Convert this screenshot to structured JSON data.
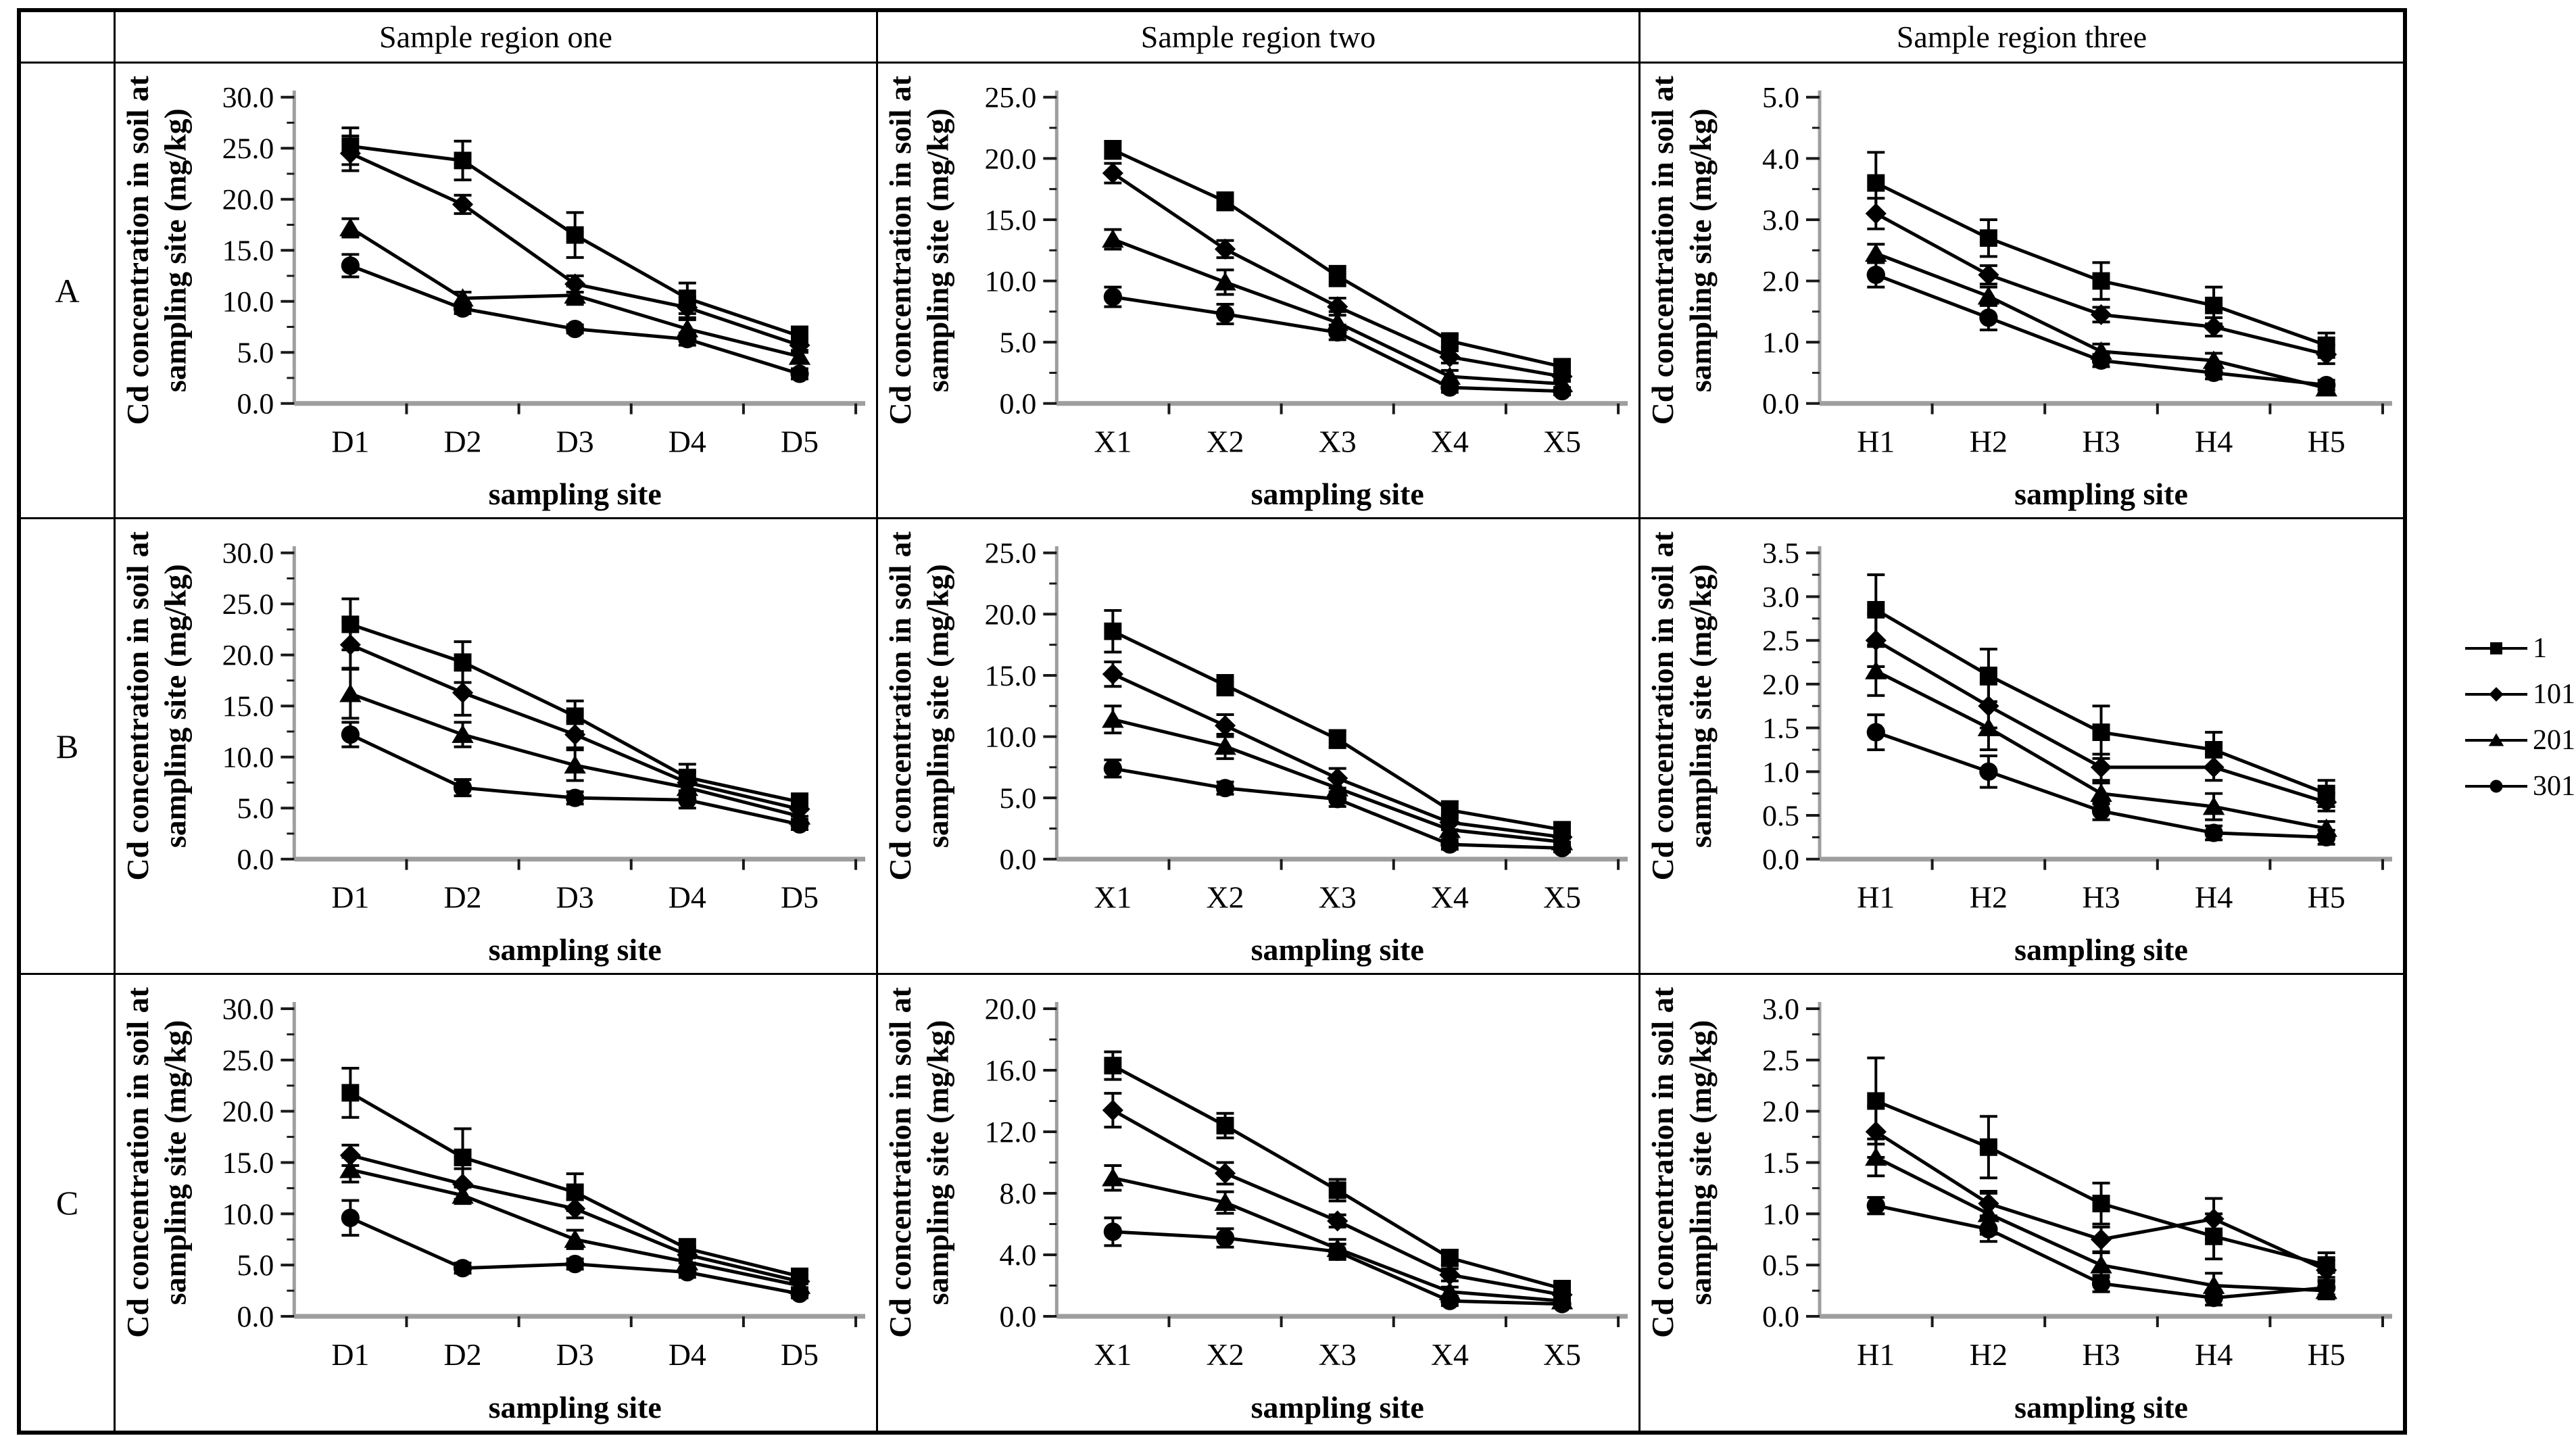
{
  "figure": {
    "corner_label": "",
    "column_headers": [
      "Sample region one",
      "Sample region two",
      "Sample region three"
    ],
    "row_labels": [
      "A",
      "B",
      "C"
    ]
  },
  "legend": {
    "position": "right",
    "items": [
      {
        "label": "1",
        "marker": "square"
      },
      {
        "label": "101",
        "marker": "diamond"
      },
      {
        "label": "201",
        "marker": "triangle"
      },
      {
        "label": "301",
        "marker": "circle"
      }
    ]
  },
  "colors": {
    "series": "#000000",
    "axis_line": "#9e9e9e",
    "tick": "#1a1a1a",
    "border": "#000000",
    "text": "#000000"
  },
  "chart_data": [
    {
      "id": "A-region-one",
      "type": "line",
      "row": "A",
      "region": "Sample region one",
      "categories": [
        "D1",
        "D2",
        "D3",
        "D4",
        "D5"
      ],
      "xlabel": "sampling site",
      "ylabel_lines": [
        "Cd concentration in  soil at",
        "sampling site (mg/kg)"
      ],
      "ylim": [
        0,
        30.0
      ],
      "ystep": 5.0,
      "tick_decimals": 1,
      "series": [
        {
          "name": "1",
          "marker": "square",
          "values": [
            25.2,
            23.8,
            16.5,
            10.3,
            6.6
          ],
          "errors": [
            1.8,
            1.9,
            2.2,
            1.5,
            0.9
          ]
        },
        {
          "name": "101",
          "marker": "diamond",
          "values": [
            24.5,
            19.5,
            11.7,
            9.4,
            5.7
          ],
          "errors": [
            1.7,
            0.9,
            0.8,
            1.0,
            0.7
          ]
        },
        {
          "name": "201",
          "marker": "triangle",
          "values": [
            17.2,
            10.3,
            10.6,
            7.3,
            4.6
          ],
          "errors": [
            0.9,
            0.6,
            0.9,
            0.9,
            0.6
          ]
        },
        {
          "name": "301",
          "marker": "circle",
          "values": [
            13.5,
            9.3,
            7.3,
            6.3,
            2.9
          ],
          "errors": [
            1.1,
            0.5,
            0.4,
            0.6,
            0.5
          ]
        }
      ]
    },
    {
      "id": "A-region-two",
      "type": "line",
      "row": "A",
      "region": "Sample region two",
      "categories": [
        "X1",
        "X2",
        "X3",
        "X4",
        "X5"
      ],
      "xlabel": "sampling site",
      "ylabel_lines": [
        "Cd concentration in  soil at",
        "sampling site (mg/kg)"
      ],
      "ylim": [
        0,
        25.0
      ],
      "ystep": 5.0,
      "tick_decimals": 1,
      "series": [
        {
          "name": "1",
          "marker": "square",
          "values": [
            20.7,
            16.5,
            10.4,
            5.1,
            3.0
          ],
          "errors": [
            0.7,
            0.7,
            0.8,
            0.5,
            0.5
          ]
        },
        {
          "name": "101",
          "marker": "diamond",
          "values": [
            18.8,
            12.6,
            7.9,
            3.8,
            2.2
          ],
          "errors": [
            0.8,
            0.7,
            0.7,
            0.5,
            0.4
          ]
        },
        {
          "name": "201",
          "marker": "triangle",
          "values": [
            13.4,
            9.9,
            6.6,
            2.2,
            1.6
          ],
          "errors": [
            0.8,
            1.0,
            0.9,
            0.5,
            0.3
          ]
        },
        {
          "name": "301",
          "marker": "circle",
          "values": [
            8.7,
            7.3,
            5.8,
            1.3,
            1.0
          ],
          "errors": [
            0.8,
            0.8,
            0.6,
            0.4,
            0.3
          ]
        }
      ]
    },
    {
      "id": "A-region-three",
      "type": "line",
      "row": "A",
      "region": "Sample region three",
      "categories": [
        "H1",
        "H2",
        "H3",
        "H4",
        "H5"
      ],
      "xlabel": "sampling site",
      "ylabel_lines": [
        "Cd concentration in  soil at",
        "sampling site (mg/kg)"
      ],
      "ylim": [
        0,
        5.0
      ],
      "ystep": 1.0,
      "tick_decimals": 1,
      "series": [
        {
          "name": "1",
          "marker": "square",
          "values": [
            3.6,
            2.7,
            2.0,
            1.6,
            0.95
          ],
          "errors": [
            0.5,
            0.3,
            0.3,
            0.3,
            0.2
          ]
        },
        {
          "name": "101",
          "marker": "diamond",
          "values": [
            3.1,
            2.1,
            1.45,
            1.25,
            0.8
          ],
          "errors": [
            0.25,
            0.15,
            0.12,
            0.15,
            0.15
          ]
        },
        {
          "name": "201",
          "marker": "triangle",
          "values": [
            2.45,
            1.75,
            0.85,
            0.7,
            0.25
          ],
          "errors": [
            0.15,
            0.15,
            0.12,
            0.12,
            0.08
          ]
        },
        {
          "name": "301",
          "marker": "circle",
          "values": [
            2.1,
            1.4,
            0.7,
            0.5,
            0.3
          ],
          "errors": [
            0.2,
            0.2,
            0.1,
            0.1,
            0.08
          ]
        }
      ]
    },
    {
      "id": "B-region-one",
      "type": "line",
      "row": "B",
      "region": "Sample region one",
      "categories": [
        "D1",
        "D2",
        "D3",
        "D4",
        "D5"
      ],
      "xlabel": "sampling site",
      "ylabel_lines": [
        "Cd concentration in  soil at",
        "sampling site (mg/kg)"
      ],
      "ylim": [
        0,
        30.0
      ],
      "ystep": 5.0,
      "tick_decimals": 1,
      "series": [
        {
          "name": "1",
          "marker": "square",
          "values": [
            23.0,
            19.3,
            14.0,
            8.0,
            5.6
          ],
          "errors": [
            2.5,
            2.0,
            1.5,
            1.3,
            0.8
          ]
        },
        {
          "name": "101",
          "marker": "diamond",
          "values": [
            21.0,
            16.3,
            12.2,
            7.5,
            4.9
          ],
          "errors": [
            2.3,
            2.2,
            1.3,
            1.0,
            0.7
          ]
        },
        {
          "name": "201",
          "marker": "triangle",
          "values": [
            16.2,
            12.2,
            9.2,
            7.0,
            4.2
          ],
          "errors": [
            2.4,
            1.2,
            1.5,
            0.9,
            0.6
          ]
        },
        {
          "name": "301",
          "marker": "circle",
          "values": [
            12.2,
            7.0,
            6.0,
            5.8,
            3.4
          ],
          "errors": [
            1.2,
            0.8,
            0.6,
            0.8,
            0.5
          ]
        }
      ]
    },
    {
      "id": "B-region-two",
      "type": "line",
      "row": "B",
      "region": "Sample region two",
      "categories": [
        "X1",
        "X2",
        "X3",
        "X4",
        "X5"
      ],
      "xlabel": "sampling site",
      "ylabel_lines": [
        "Cd concentration in  soil at",
        "sampling site (mg/kg)"
      ],
      "ylim": [
        0,
        25.0
      ],
      "ystep": 5.0,
      "tick_decimals": 1,
      "series": [
        {
          "name": "1",
          "marker": "square",
          "values": [
            18.6,
            14.2,
            9.8,
            4.0,
            2.4
          ],
          "errors": [
            1.7,
            0.8,
            0.7,
            0.7,
            0.5
          ]
        },
        {
          "name": "101",
          "marker": "diamond",
          "values": [
            15.1,
            10.9,
            6.6,
            3.0,
            1.8
          ],
          "errors": [
            1.0,
            0.9,
            0.8,
            0.6,
            0.4
          ]
        },
        {
          "name": "201",
          "marker": "triangle",
          "values": [
            11.4,
            9.2,
            5.8,
            2.4,
            1.4
          ],
          "errors": [
            1.1,
            1.0,
            0.7,
            0.5,
            0.3
          ]
        },
        {
          "name": "301",
          "marker": "circle",
          "values": [
            7.4,
            5.8,
            4.9,
            1.2,
            0.9
          ],
          "errors": [
            0.7,
            0.5,
            0.6,
            0.4,
            0.3
          ]
        }
      ]
    },
    {
      "id": "B-region-three",
      "type": "line",
      "row": "B",
      "region": "Sample region three",
      "categories": [
        "H1",
        "H2",
        "H3",
        "H4",
        "H5"
      ],
      "xlabel": "sampling site",
      "ylabel_lines": [
        "Cd concentration in  soil at",
        "sampling site (mg/kg)"
      ],
      "ylim": [
        0,
        3.5
      ],
      "ystep": 0.5,
      "tick_decimals": 1,
      "series": [
        {
          "name": "1",
          "marker": "square",
          "values": [
            2.85,
            2.1,
            1.45,
            1.25,
            0.75
          ],
          "errors": [
            0.4,
            0.3,
            0.3,
            0.2,
            0.15
          ]
        },
        {
          "name": "101",
          "marker": "diamond",
          "values": [
            2.5,
            1.75,
            1.05,
            1.05,
            0.65
          ],
          "errors": [
            0.3,
            0.25,
            0.15,
            0.15,
            0.1
          ]
        },
        {
          "name": "201",
          "marker": "triangle",
          "values": [
            2.15,
            1.5,
            0.75,
            0.6,
            0.35
          ],
          "errors": [
            0.28,
            0.25,
            0.12,
            0.15,
            0.08
          ]
        },
        {
          "name": "301",
          "marker": "circle",
          "values": [
            1.45,
            1.0,
            0.55,
            0.3,
            0.25
          ],
          "errors": [
            0.2,
            0.18,
            0.1,
            0.08,
            0.08
          ]
        }
      ]
    },
    {
      "id": "C-region-one",
      "type": "line",
      "row": "C",
      "region": "Sample region one",
      "categories": [
        "D1",
        "D2",
        "D3",
        "D4",
        "D5"
      ],
      "xlabel": "sampling site",
      "ylabel_lines": [
        "Cd concentration in  soil at",
        "sampling site (mg/kg)"
      ],
      "ylim": [
        0,
        30.0
      ],
      "ystep": 5.0,
      "tick_decimals": 1,
      "series": [
        {
          "name": "1",
          "marker": "square",
          "values": [
            21.8,
            15.5,
            12.1,
            6.6,
            3.9
          ],
          "errors": [
            2.4,
            2.8,
            1.8,
            0.9,
            0.7
          ]
        },
        {
          "name": "101",
          "marker": "diamond",
          "values": [
            15.7,
            12.9,
            10.5,
            6.0,
            3.4
          ],
          "errors": [
            1.0,
            1.5,
            0.9,
            0.8,
            0.6
          ]
        },
        {
          "name": "201",
          "marker": "triangle",
          "values": [
            14.3,
            11.8,
            7.5,
            5.3,
            3.0
          ],
          "errors": [
            1.2,
            0.8,
            0.9,
            0.7,
            0.5
          ]
        },
        {
          "name": "301",
          "marker": "circle",
          "values": [
            9.6,
            4.7,
            5.1,
            4.3,
            2.2
          ],
          "errors": [
            1.7,
            0.5,
            0.5,
            0.5,
            0.4
          ]
        }
      ]
    },
    {
      "id": "C-region-two",
      "type": "line",
      "row": "C",
      "region": "Sample region two",
      "categories": [
        "X1",
        "X2",
        "X3",
        "X4",
        "X5"
      ],
      "xlabel": "sampling site",
      "ylabel_lines": [
        "Cd concentration in  soil at",
        "sampling site (mg/kg)"
      ],
      "ylim": [
        0,
        20.0
      ],
      "ystep": 4.0,
      "tick_decimals": 1,
      "series": [
        {
          "name": "1",
          "marker": "square",
          "values": [
            16.3,
            12.4,
            8.2,
            3.8,
            1.8
          ],
          "errors": [
            0.9,
            0.8,
            0.7,
            0.5,
            0.4
          ]
        },
        {
          "name": "101",
          "marker": "diamond",
          "values": [
            13.4,
            9.3,
            6.2,
            2.7,
            1.4
          ],
          "errors": [
            1.1,
            0.7,
            0.4,
            0.4,
            0.3
          ]
        },
        {
          "name": "201",
          "marker": "triangle",
          "values": [
            9.0,
            7.4,
            4.4,
            1.6,
            1.0
          ],
          "errors": [
            0.8,
            0.7,
            0.6,
            0.3,
            0.2
          ]
        },
        {
          "name": "301",
          "marker": "circle",
          "values": [
            5.5,
            5.1,
            4.2,
            1.0,
            0.8
          ],
          "errors": [
            0.9,
            0.6,
            0.5,
            0.3,
            0.2
          ]
        }
      ]
    },
    {
      "id": "C-region-three",
      "type": "line",
      "row": "C",
      "region": "Sample region three",
      "categories": [
        "H1",
        "H2",
        "H3",
        "H4",
        "H5"
      ],
      "xlabel": "sampling site",
      "ylabel_lines": [
        "Cd concentration in  soil at",
        "sampling site (mg/kg)"
      ],
      "ylim": [
        0,
        3.0
      ],
      "ystep": 0.5,
      "tick_decimals": 1,
      "series": [
        {
          "name": "1",
          "marker": "square",
          "values": [
            2.1,
            1.65,
            1.1,
            0.78,
            0.5
          ],
          "errors": [
            0.42,
            0.3,
            0.2,
            0.22,
            0.12
          ]
        },
        {
          "name": "101",
          "marker": "diamond",
          "values": [
            1.8,
            1.1,
            0.75,
            0.95,
            0.45
          ],
          "errors": [
            0.25,
            0.12,
            0.12,
            0.2,
            0.1
          ]
        },
        {
          "name": "201",
          "marker": "triangle",
          "values": [
            1.55,
            1.0,
            0.5,
            0.3,
            0.25
          ],
          "errors": [
            0.18,
            0.2,
            0.12,
            0.12,
            0.08
          ]
        },
        {
          "name": "301",
          "marker": "circle",
          "values": [
            1.08,
            0.85,
            0.32,
            0.18,
            0.28
          ],
          "errors": [
            0.08,
            0.12,
            0.08,
            0.07,
            0.07
          ]
        }
      ]
    }
  ]
}
